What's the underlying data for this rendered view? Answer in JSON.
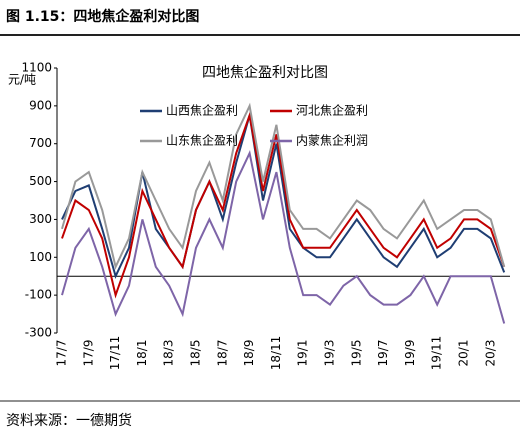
{
  "header": {
    "title": "图 1.15：四地焦企盈利对比图"
  },
  "chart_data": {
    "type": "line",
    "title": "四地焦企盈利对比图",
    "y_label": "元/吨",
    "categories": [
      "17/7",
      null,
      "17/9",
      null,
      "17/11",
      null,
      "18/1",
      null,
      "18/3",
      null,
      "18/5",
      null,
      "18/7",
      null,
      "18/9",
      null,
      "18/11",
      null,
      "19/1",
      null,
      "19/3",
      null,
      "19/5",
      null,
      "19/7",
      null,
      "19/9",
      null,
      "19/11",
      null,
      "20/1",
      null,
      "20/3",
      null
    ],
    "series": [
      {
        "name": "山西焦企盈利",
        "color": "#1f3e73",
        "values": [
          300,
          450,
          480,
          250,
          0,
          150,
          550,
          250,
          150,
          50,
          350,
          500,
          300,
          600,
          850,
          400,
          700,
          250,
          150,
          100,
          100,
          200,
          300,
          200,
          100,
          50,
          150,
          250,
          100,
          150,
          250,
          250,
          200,
          20
        ]
      },
      {
        "name": "河北焦企盈利",
        "color": "#c00000",
        "values": [
          200,
          400,
          350,
          200,
          -100,
          100,
          450,
          300,
          150,
          50,
          350,
          500,
          350,
          650,
          850,
          450,
          750,
          300,
          150,
          150,
          150,
          250,
          350,
          250,
          150,
          100,
          200,
          300,
          150,
          200,
          300,
          300,
          250,
          50
        ]
      },
      {
        "name": "山东焦企盈利",
        "color": "#999999",
        "values": [
          250,
          500,
          550,
          350,
          50,
          200,
          550,
          400,
          250,
          150,
          450,
          600,
          400,
          750,
          900,
          500,
          800,
          350,
          250,
          250,
          200,
          300,
          400,
          350,
          250,
          200,
          300,
          400,
          250,
          300,
          350,
          350,
          300,
          50
        ]
      },
      {
        "name": "内蒙焦企利润",
        "color": "#7e65a8",
        "values": [
          -100,
          150,
          250,
          50,
          -200,
          -50,
          300,
          50,
          -50,
          -200,
          150,
          300,
          150,
          500,
          650,
          300,
          550,
          150,
          -100,
          -100,
          -150,
          -50,
          0,
          -100,
          -150,
          -150,
          -100,
          0,
          -150,
          0,
          0,
          0,
          0,
          -250
        ]
      }
    ],
    "ylim": [
      -300,
      1100
    ],
    "yticks": [
      -300,
      -100,
      100,
      300,
      500,
      700,
      900,
      1100
    ],
    "grid": false
  },
  "footer": {
    "source": "资料来源：一德期货"
  }
}
